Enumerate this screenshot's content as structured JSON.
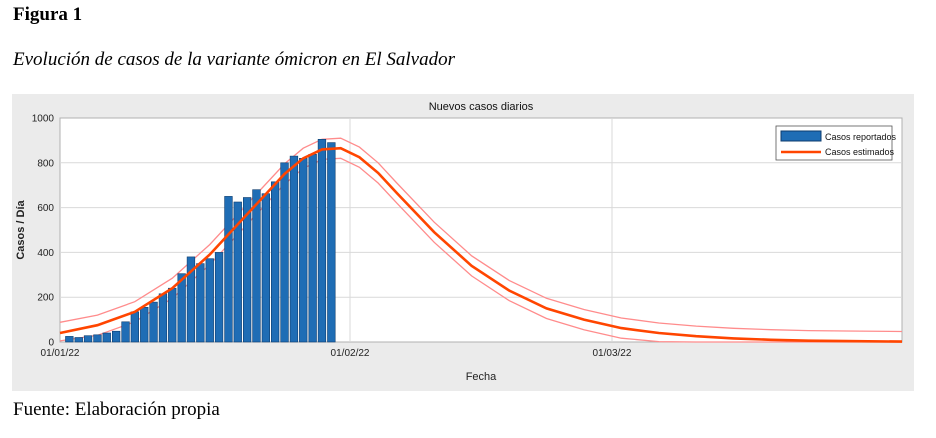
{
  "figure": {
    "label": "Figura 1",
    "title": "Evolución de casos de la variante ómicron en El Salvador",
    "source": "Fuente: Elaboración propia"
  },
  "colors": {
    "background": "#ebebeb",
    "plot_bg": "#ffffff",
    "bar": "#1f6db5",
    "bar_edge": "#0d3c6e",
    "estimate": "#ff4500",
    "band": "#ff8c8c",
    "grid": "#d9d9d9"
  },
  "chart_data": {
    "type": "bar",
    "title": "Nuevos casos diarios",
    "xlabel": "Fecha",
    "ylabel": "Casos / Día",
    "xlim_days": [
      0,
      90
    ],
    "ylim": [
      0,
      1000
    ],
    "x_ticks": [
      {
        "day": 0,
        "label": "01/01/22"
      },
      {
        "day": 31,
        "label": "01/02/22"
      },
      {
        "day": 59,
        "label": "01/03/22"
      }
    ],
    "y_ticks": [
      0,
      200,
      400,
      600,
      800,
      1000
    ],
    "grid": true,
    "legend": {
      "position": "top-right",
      "entries": [
        "Casos reportados",
        "Casos estimados"
      ]
    },
    "series": [
      {
        "name": "Casos reportados",
        "type": "bar",
        "x": [
          1,
          2,
          3,
          4,
          5,
          6,
          7,
          8,
          9,
          10,
          11,
          12,
          13,
          14,
          15,
          16,
          17,
          18,
          19,
          20,
          21,
          22,
          23,
          24,
          25,
          26,
          27,
          28,
          29,
          30,
          31
        ],
        "values": [
          25,
          20,
          28,
          32,
          40,
          48,
          90,
          135,
          155,
          178,
          215,
          240,
          305,
          380,
          350,
          372,
          400,
          650,
          625,
          645,
          680,
          662,
          715,
          800,
          830,
          820,
          838,
          905,
          890,
          0,
          0
        ]
      },
      {
        "name": "Casos estimados",
        "type": "line",
        "x": [
          0,
          4,
          8,
          12,
          16,
          20,
          24,
          26,
          28,
          30,
          32,
          34,
          36,
          40,
          44,
          48,
          52,
          56,
          60,
          64,
          68,
          72,
          76,
          80,
          84,
          90
        ],
        "values": [
          40,
          75,
          135,
          240,
          390,
          570,
          750,
          820,
          860,
          865,
          825,
          755,
          665,
          490,
          340,
          230,
          150,
          100,
          62,
          40,
          26,
          16,
          10,
          6,
          4,
          2
        ]
      },
      {
        "name": "",
        "type": "band-upper",
        "x": [
          0,
          4,
          8,
          12,
          16,
          20,
          24,
          26,
          28,
          30,
          32,
          34,
          36,
          40,
          44,
          48,
          52,
          56,
          60,
          64,
          68,
          72,
          76,
          80,
          84,
          90
        ],
        "values": [
          88,
          120,
          180,
          285,
          435,
          615,
          795,
          865,
          905,
          910,
          870,
          800,
          710,
          535,
          385,
          275,
          195,
          145,
          107,
          85,
          71,
          61,
          55,
          51,
          49,
          47
        ]
      },
      {
        "name": "",
        "type": "band-lower",
        "x": [
          0,
          4,
          8,
          12,
          16,
          20,
          24,
          26,
          28,
          30,
          32,
          34,
          36,
          40,
          44,
          48,
          52,
          56,
          60,
          64,
          68,
          72,
          76,
          80,
          84,
          90
        ],
        "values": [
          5,
          30,
          90,
          195,
          345,
          525,
          705,
          775,
          815,
          820,
          780,
          710,
          620,
          445,
          295,
          185,
          105,
          55,
          17,
          2,
          0,
          0,
          0,
          0,
          0,
          0
        ]
      }
    ]
  }
}
